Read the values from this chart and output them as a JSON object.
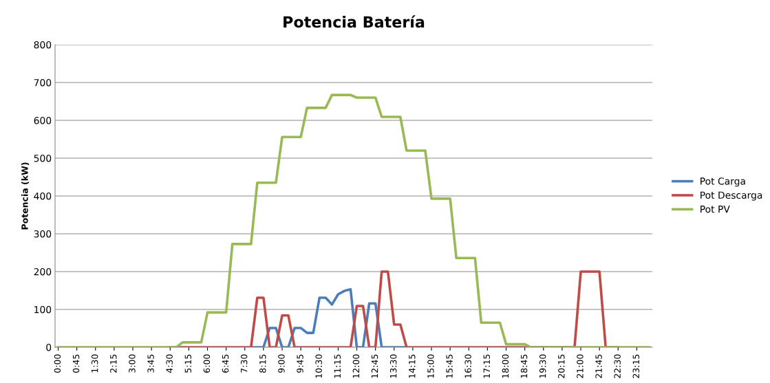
{
  "chart_data": {
    "type": "line",
    "title": "Potencia Batería",
    "ylabel": "Potencia (kW)",
    "categories": [
      "0:00",
      null,
      null,
      "0:45",
      null,
      null,
      "1:30",
      null,
      null,
      "2:15",
      null,
      null,
      "3:00",
      null,
      null,
      "3:45",
      null,
      null,
      "4:30",
      null,
      null,
      "5:15",
      null,
      null,
      "6:00",
      null,
      null,
      "6:45",
      null,
      null,
      "7:30",
      null,
      null,
      "8:15",
      null,
      null,
      "9:00",
      null,
      null,
      "9:45",
      null,
      null,
      "10:30",
      null,
      null,
      "11:15",
      null,
      null,
      "12:00",
      null,
      null,
      "12:45",
      null,
      null,
      "13:30",
      null,
      null,
      "14:15",
      null,
      null,
      "15:00",
      null,
      null,
      "15:45",
      null,
      null,
      "16:30",
      null,
      null,
      "17:15",
      null,
      null,
      "18:00",
      null,
      null,
      "18:45",
      null,
      null,
      "19:30",
      null,
      null,
      "20:15",
      null,
      null,
      "21:00",
      null,
      null,
      "21:45",
      null,
      null,
      "22:30",
      null,
      null,
      "23:15",
      null,
      null
    ],
    "series": [
      {
        "name": "Pot Carga",
        "color": "#4a7ebb",
        "values": [
          null,
          null,
          null,
          null,
          null,
          null,
          null,
          null,
          null,
          null,
          null,
          null,
          null,
          null,
          null,
          null,
          null,
          null,
          null,
          null,
          null,
          null,
          null,
          null,
          null,
          null,
          null,
          null,
          null,
          null,
          null,
          0,
          0,
          0,
          51,
          51,
          0,
          0,
          51,
          51,
          38,
          38,
          131,
          131,
          113,
          140,
          149,
          153,
          0,
          0,
          116,
          116,
          0,
          0,
          0,
          0,
          0,
          null,
          null,
          null,
          null,
          null,
          null,
          null,
          null,
          null,
          null,
          null,
          null,
          null,
          null,
          null,
          null,
          null,
          null,
          null,
          null,
          null,
          null,
          null,
          null,
          null,
          null,
          null,
          null,
          null,
          null,
          null,
          null,
          null,
          null,
          null,
          null,
          null,
          null,
          null
        ]
      },
      {
        "name": "Pot Descarga",
        "color": "#be4b48",
        "values": [
          null,
          null,
          null,
          null,
          null,
          null,
          null,
          null,
          null,
          null,
          null,
          null,
          null,
          null,
          null,
          null,
          null,
          null,
          0,
          0,
          0,
          0,
          0,
          0,
          0,
          0,
          0,
          0,
          0,
          0,
          0,
          0,
          131,
          131,
          0,
          0,
          84,
          84,
          0,
          0,
          0,
          0,
          0,
          0,
          0,
          0,
          0,
          0,
          109,
          109,
          0,
          0,
          200,
          200,
          60,
          60,
          0,
          0,
          0,
          0,
          0,
          0,
          0,
          0,
          0,
          0,
          0,
          0,
          0,
          0,
          0,
          0,
          0,
          0,
          0,
          0,
          0,
          0,
          0,
          0,
          0,
          0,
          0,
          0,
          200,
          200,
          200,
          200,
          0,
          0,
          0,
          null,
          null,
          null,
          null,
          null
        ]
      },
      {
        "name": "Pot PV",
        "color": "#98b954",
        "values": [
          0,
          0,
          0,
          0,
          0,
          0,
          0,
          0,
          0,
          0,
          0,
          0,
          0,
          0,
          0,
          0,
          0,
          0,
          0,
          0,
          13,
          13,
          13,
          13,
          92,
          92,
          92,
          92,
          273,
          273,
          273,
          273,
          435,
          435,
          435,
          435,
          556,
          556,
          556,
          556,
          633,
          633,
          633,
          633,
          667,
          667,
          667,
          667,
          660,
          660,
          660,
          660,
          609,
          609,
          609,
          609,
          520,
          520,
          520,
          520,
          393,
          393,
          393,
          393,
          236,
          236,
          236,
          236,
          65,
          65,
          65,
          65,
          8,
          8,
          8,
          8,
          0,
          0,
          0,
          0,
          0,
          0,
          0,
          0,
          0,
          0,
          0,
          0,
          0,
          0,
          0,
          0,
          0,
          0,
          0,
          0
        ]
      }
    ],
    "ylim": [
      0,
      800
    ],
    "yticks": [
      0,
      100,
      200,
      300,
      400,
      500,
      600,
      700,
      800
    ],
    "grid": "y",
    "legend": "right",
    "marker": "none",
    "line_style": "solid"
  }
}
